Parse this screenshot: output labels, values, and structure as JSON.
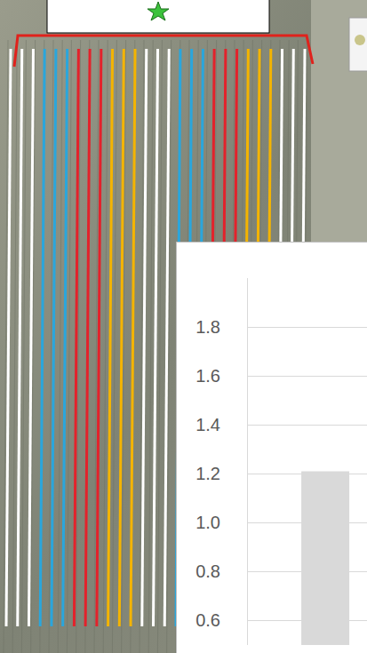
{
  "chart_data": {
    "type": "bar",
    "categories": [
      null
    ],
    "values": [
      1.21
    ],
    "color": "#d9d9d9",
    "ylim": [
      0.5,
      2.0
    ],
    "yticks": [
      0.6,
      0.8,
      {
        "value": 1,
        "label": "1.0"
      },
      1.2,
      1.4,
      1.6,
      1.8
    ],
    "grid": true,
    "tick_labels": "y"
  }
}
